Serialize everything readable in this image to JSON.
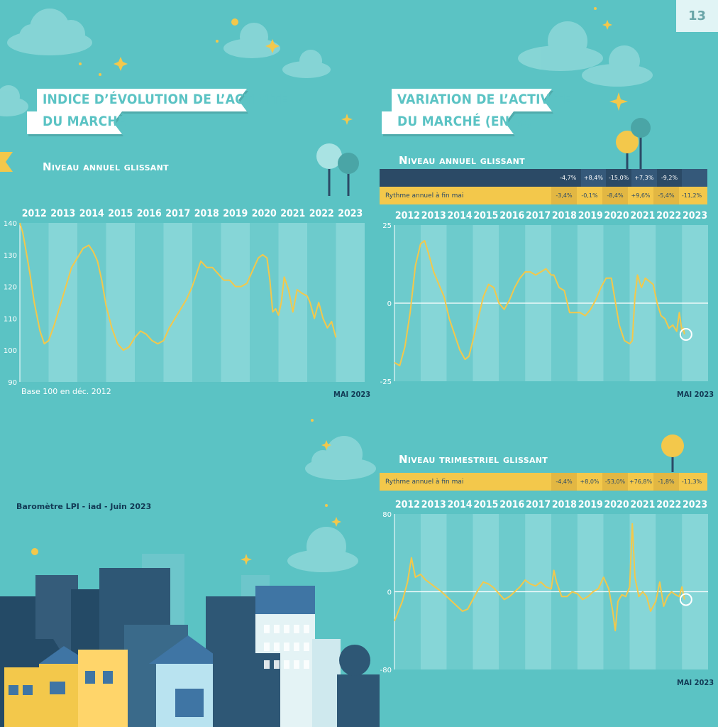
{
  "page_number": "13",
  "left_panel": {
    "title_line1": "INDICE D’ÉVOLUTION DE L’ACTIVITÉ",
    "title_line2": "DU MARCHÉ",
    "subtitle": "Niveau annuel glissant",
    "base_note": "Base 100 en déc. 2012",
    "date_stamp": "MAI 2023"
  },
  "right_panel": {
    "title_line1": "VARIATION DE L’ACTIVITÉ",
    "title_line2": "DU MARCHÉ (EN %)",
    "subtitle_annual": "Niveau annuel glissant",
    "subtitle_quarterly": "Niveau trimestriel glissant",
    "date_stamp_top": "MAI 2023",
    "date_stamp_bottom": "MAI 2023",
    "annual_table": {
      "row1": [
        "-4,7%",
        "+8,4%",
        "-15,0%",
        "+7,3%",
        "-9,2%",
        ""
      ],
      "row2_label": "Rythme annuel à fin mai",
      "row2": [
        "-3,4%",
        "-0,1%",
        "-8,4%",
        "+9,6%",
        "-5,4%",
        "-11,2%"
      ]
    },
    "quarterly_table": {
      "label": "Rythme annuel à fin mai",
      "values": [
        "-4,4%",
        "+8,0%",
        "-53,0%",
        "+76,8%",
        "-1,8%",
        "-11,3%"
      ]
    }
  },
  "footer_source": "Baromètre LPI - iad - Juin 2023",
  "colors": {
    "background": "#5bc3c4",
    "band_light": "#86d6d7",
    "band_dark": "#6dcbcc",
    "series": "#f3c84b",
    "navy": "#2b4a66",
    "yellow": "#f3c84b"
  },
  "chart_data": [
    {
      "type": "line",
      "title": "INDICE D’ÉVOLUTION DE L’ACTIVITÉ DU MARCHÉ",
      "subtitle": "Niveau annuel glissant",
      "categories": [
        "2012",
        "2013",
        "2014",
        "2015",
        "2016",
        "2017",
        "2018",
        "2019",
        "2020",
        "2021",
        "2022",
        "2023"
      ],
      "ylim": [
        90,
        140
      ],
      "yticks": [
        90,
        100,
        110,
        120,
        130,
        140
      ],
      "x_unit": "year",
      "x": [
        2012.0,
        2012.1,
        2012.2,
        2012.35,
        2012.5,
        2012.7,
        2012.85,
        2013.0,
        2013.2,
        2013.4,
        2013.6,
        2013.8,
        2014.0,
        2014.2,
        2014.4,
        2014.55,
        2014.7,
        2014.85,
        2015.0,
        2015.2,
        2015.4,
        2015.6,
        2015.8,
        2016.0,
        2016.2,
        2016.4,
        2016.6,
        2016.8,
        2017.0,
        2017.2,
        2017.4,
        2017.6,
        2017.8,
        2018.0,
        2018.15,
        2018.3,
        2018.5,
        2018.7,
        2018.9,
        2019.1,
        2019.3,
        2019.5,
        2019.7,
        2019.9,
        2020.1,
        2020.3,
        2020.45,
        2020.6,
        2020.7,
        2020.8,
        2020.9,
        2021.0,
        2021.1,
        2021.2,
        2021.35,
        2021.5,
        2021.65,
        2021.8,
        2022.0,
        2022.1,
        2022.25,
        2022.4,
        2022.55,
        2022.7,
        2022.85,
        2023.0
      ],
      "values": [
        140,
        137,
        132,
        124,
        115,
        106,
        102,
        103,
        108,
        114,
        120,
        126,
        129,
        132,
        133,
        131,
        128,
        122,
        114,
        107,
        102,
        100,
        101,
        104,
        106,
        105,
        103,
        102,
        103,
        107,
        110,
        113,
        116,
        120,
        124,
        128,
        126,
        126,
        124,
        122,
        122,
        120,
        120,
        121,
        125,
        129,
        130,
        129,
        122,
        112,
        113,
        111,
        115,
        123,
        119,
        112,
        119,
        118,
        117,
        115,
        110,
        115,
        110,
        107,
        109,
        104
      ],
      "base_note": "Base 100 en déc. 2012",
      "date_stamp": "MAI 2023"
    },
    {
      "type": "line",
      "title": "VARIATION DE L’ACTIVITÉ DU MARCHÉ (EN %)",
      "subtitle": "Niveau annuel glissant",
      "categories": [
        "2012",
        "2013",
        "2014",
        "2015",
        "2016",
        "2017",
        "2018",
        "2019",
        "2020",
        "2021",
        "2022",
        "2023"
      ],
      "ylim": [
        -25,
        25
      ],
      "yticks": [
        -25,
        0,
        25
      ],
      "x_unit": "year",
      "x": [
        2012.0,
        2012.2,
        2012.4,
        2012.6,
        2012.8,
        2013.0,
        2013.15,
        2013.3,
        2013.5,
        2013.7,
        2013.9,
        2014.1,
        2014.3,
        2014.5,
        2014.7,
        2014.85,
        2015.0,
        2015.2,
        2015.4,
        2015.6,
        2015.8,
        2016.0,
        2016.2,
        2016.4,
        2016.6,
        2016.8,
        2017.0,
        2017.2,
        2017.4,
        2017.6,
        2017.8,
        2018.0,
        2018.1,
        2018.3,
        2018.5,
        2018.7,
        2018.9,
        2019.1,
        2019.3,
        2019.5,
        2019.7,
        2019.9,
        2020.1,
        2020.3,
        2020.5,
        2020.6,
        2020.8,
        2021.0,
        2021.1,
        2021.2,
        2021.3,
        2021.45,
        2021.6,
        2021.75,
        2021.9,
        2022.05,
        2022.2,
        2022.35,
        2022.5,
        2022.65,
        2022.8,
        2022.9,
        2023.0,
        2023.05,
        2023.1
      ],
      "values": [
        -19,
        -20,
        -14,
        -3,
        12,
        19,
        20,
        16,
        10,
        6,
        2,
        -5,
        -10,
        -15,
        -18,
        -17,
        -12,
        -5,
        2,
        6,
        5,
        0,
        -2,
        1,
        5,
        8,
        10,
        10,
        9,
        10,
        11,
        9,
        9,
        5,
        4,
        -3,
        -3,
        -3,
        -4,
        -2,
        1,
        5,
        8,
        8,
        -2,
        -7,
        -12,
        -13,
        -12,
        2,
        9,
        5,
        8,
        7,
        6,
        0,
        -4,
        -5,
        -8,
        -7,
        -9,
        -3,
        -9,
        -8,
        -10
      ],
      "date_stamp": "MAI 2023"
    },
    {
      "type": "line",
      "title": "VARIATION DE L’ACTIVITÉ DU MARCHÉ (EN %)",
      "subtitle": "Niveau trimestriel glissant",
      "categories": [
        "2012",
        "2013",
        "2014",
        "2015",
        "2016",
        "2017",
        "2018",
        "2019",
        "2020",
        "2021",
        "2022",
        "2023"
      ],
      "ylim": [
        -80,
        80
      ],
      "yticks": [
        -80,
        0,
        80
      ],
      "x_unit": "year",
      "x": [
        2012.0,
        2012.15,
        2012.3,
        2012.5,
        2012.65,
        2012.8,
        2013.0,
        2013.2,
        2013.4,
        2013.6,
        2013.8,
        2014.0,
        2014.2,
        2014.4,
        2014.6,
        2014.8,
        2015.0,
        2015.2,
        2015.4,
        2015.6,
        2015.8,
        2016.0,
        2016.2,
        2016.4,
        2016.6,
        2016.8,
        2017.0,
        2017.2,
        2017.4,
        2017.6,
        2017.8,
        2018.0,
        2018.1,
        2018.2,
        2018.4,
        2018.6,
        2018.8,
        2019.0,
        2019.2,
        2019.4,
        2019.6,
        2019.8,
        2020.0,
        2020.2,
        2020.35,
        2020.45,
        2020.55,
        2020.7,
        2020.85,
        2021.0,
        2021.1,
        2021.2,
        2021.35,
        2021.5,
        2021.65,
        2021.8,
        2022.0,
        2022.15,
        2022.3,
        2022.45,
        2022.6,
        2022.75,
        2022.9,
        2023.0,
        2023.1
      ],
      "values": [
        -30,
        -20,
        -10,
        10,
        35,
        15,
        18,
        12,
        8,
        4,
        0,
        -5,
        -10,
        -15,
        -20,
        -18,
        -8,
        2,
        10,
        8,
        4,
        -2,
        -8,
        -5,
        0,
        5,
        12,
        8,
        6,
        10,
        5,
        3,
        22,
        10,
        -5,
        -5,
        0,
        -2,
        -8,
        -5,
        0,
        3,
        15,
        3,
        -20,
        -40,
        -10,
        -3,
        -5,
        5,
        70,
        15,
        -5,
        0,
        -5,
        -20,
        -10,
        10,
        -15,
        -5,
        0,
        -3,
        -5,
        5,
        -8
      ]
    }
  ]
}
